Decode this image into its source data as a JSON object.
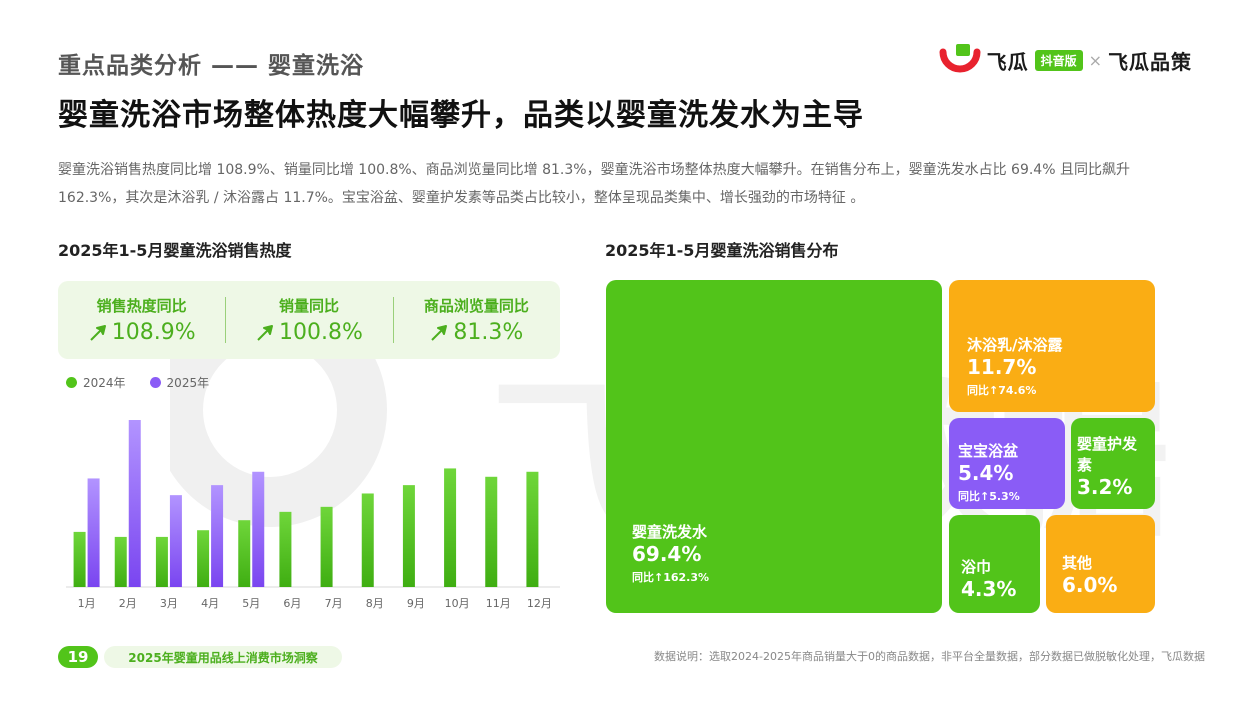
{
  "header": {
    "section_title": "重点品类分析 —— 婴童洗浴",
    "main_title": "婴童洗浴市场整体热度大幅攀升，品类以婴童洗发水为主导",
    "summary": "婴童洗浴销售热度同比增 108.9%、销量同比增 100.8%、商品浏览量同比增 81.3%，婴童洗浴市场整体热度大幅攀升。在销售分布上，婴童洗发水占比 69.4% 且同比飙升 162.3%，其次是沐浴乳 / 沐浴露占 11.7%。宝宝浴盆、婴童护发素等品类占比较小，整体呈现品类集中、增长强劲的市场特征 。"
  },
  "brand": {
    "name_left": "飞瓜",
    "badge": "抖音版",
    "separator": "×",
    "name_right": "飞瓜品策",
    "logo_icon": "feigua-logo-icon",
    "colors": {
      "red": "#e8222e",
      "green": "#52c41a"
    }
  },
  "watermark": {
    "text": "飞瓜数据"
  },
  "kpis": [
    {
      "label": "销售热度同比",
      "value": "108.9%"
    },
    {
      "label": "销量同比",
      "value": "100.8%"
    },
    {
      "label": "商品浏览量同比",
      "value": "81.3%"
    }
  ],
  "chart_data": [
    {
      "type": "bar",
      "title": "2025年1-5月婴童洗浴销售热度",
      "categories": [
        "1月",
        "2月",
        "3月",
        "4月",
        "5月",
        "6月",
        "7月",
        "8月",
        "9月",
        "10月",
        "11月",
        "12月"
      ],
      "series": [
        {
          "name": "2024年",
          "color": "#52c41a",
          "values": [
            33,
            30,
            30,
            34,
            40,
            45,
            48,
            56,
            61,
            71,
            66,
            69
          ]
        },
        {
          "name": "2025年",
          "color": "#8a5cf6",
          "values": [
            65,
            100,
            55,
            61,
            69,
            null,
            null,
            null,
            null,
            null,
            null,
            null
          ]
        }
      ],
      "ylim": [
        0,
        100
      ],
      "grid": false,
      "legend": "top-left"
    },
    {
      "type": "treemap",
      "title": "2025年1-5月婴童洗浴销售分布",
      "items": [
        {
          "name": "婴童洗发水",
          "share_label": "69.4%",
          "value": 69.4,
          "yoy": "同比↑162.3%",
          "color": "#52c41a"
        },
        {
          "name": "沐浴乳/沐浴露",
          "share_label": "11.7%",
          "value": 11.7,
          "yoy": "同比↑74.6%",
          "color": "#faad14"
        },
        {
          "name": "宝宝浴盆",
          "share_label": "5.4%",
          "value": 5.4,
          "yoy": "同比↑5.3%",
          "color": "#8a5cf6"
        },
        {
          "name": "婴童护发素",
          "share_label": "3.2%",
          "value": 3.2,
          "yoy": "",
          "color": "#52c41a"
        },
        {
          "name": "浴巾",
          "share_label": "4.3%",
          "value": 4.3,
          "yoy": "",
          "color": "#52c41a"
        },
        {
          "name": "其他",
          "share_label": "6.0%",
          "value": 6.0,
          "yoy": "",
          "color": "#faad14"
        }
      ]
    }
  ],
  "footer": {
    "page_number": "19",
    "report_title": "2025年婴童用品线上消费市场洞察",
    "note": "数据说明：选取2024-2025年商品销量大于0的商品数据，非平台全量数据，部分数据已做脱敏化处理，飞瓜数据"
  }
}
